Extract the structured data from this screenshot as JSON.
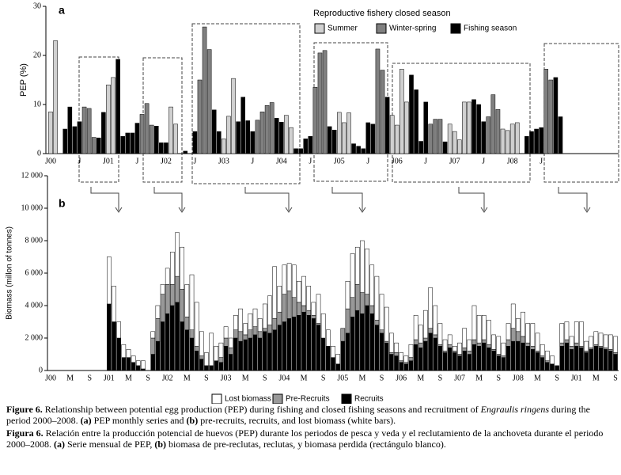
{
  "chart_data": [
    {
      "type": "bar",
      "panel": "a",
      "ylabel": "PEP (%)",
      "legend_title": "Reproductive fishery closed season",
      "ylim": [
        0,
        30
      ],
      "yticks": [
        0,
        10,
        20,
        30
      ],
      "categories": [
        "J00",
        null,
        null,
        null,
        null,
        null,
        "J",
        null,
        null,
        null,
        null,
        null,
        "J01",
        null,
        null,
        null,
        null,
        null,
        "J",
        null,
        null,
        null,
        null,
        null,
        "J02",
        null,
        null,
        null,
        null,
        null,
        "J",
        null,
        null,
        null,
        null,
        null,
        "J03",
        null,
        null,
        null,
        null,
        null,
        "J",
        null,
        null,
        null,
        null,
        null,
        "J04",
        null,
        null,
        null,
        null,
        null,
        "J",
        null,
        null,
        null,
        null,
        null,
        "J05",
        null,
        null,
        null,
        null,
        null,
        "J",
        null,
        null,
        null,
        null,
        null,
        "J06",
        null,
        null,
        null,
        null,
        null,
        "J",
        null,
        null,
        null,
        null,
        null,
        "J07",
        null,
        null,
        null,
        null,
        null,
        "J",
        null,
        null,
        null,
        null,
        null,
        "J08",
        null,
        null,
        null,
        null,
        null,
        "J",
        null,
        null,
        null,
        null
      ],
      "series": [
        {
          "name": "Summer",
          "color": "#d0d0d0",
          "values": [
            8.5,
            23,
            null,
            null,
            null,
            null,
            null,
            null,
            null,
            null,
            null,
            null,
            14,
            15.5,
            null,
            null,
            null,
            null,
            null,
            null,
            null,
            null,
            null,
            null,
            null,
            9.5,
            6,
            null,
            null,
            null,
            null,
            null,
            null,
            null,
            null,
            null,
            3,
            7.6,
            15.3,
            null,
            null,
            null,
            null,
            null,
            null,
            null,
            null,
            null,
            null,
            7.8,
            5.3,
            null,
            null,
            null,
            null,
            null,
            null,
            null,
            null,
            null,
            8.4,
            6.3,
            8.3,
            null,
            null,
            null,
            null,
            null,
            null,
            null,
            null,
            7.8,
            5.8,
            17.2,
            10.5,
            null,
            null,
            null,
            null,
            null,
            null,
            null,
            null,
            6,
            4.5,
            2.8,
            10.5,
            10.5,
            null,
            null,
            null,
            null,
            null,
            null,
            5,
            4.7,
            6,
            6.3,
            null,
            null,
            null,
            null,
            null,
            null,
            null,
            null,
            null
          ]
        },
        {
          "name": "Winter-spring",
          "color": "#808080",
          "values": [
            null,
            null,
            null,
            null,
            null,
            null,
            null,
            9.5,
            9.2,
            3.3,
            null,
            null,
            null,
            null,
            null,
            null,
            null,
            null,
            null,
            8,
            10.2,
            5.8,
            null,
            null,
            null,
            null,
            null,
            null,
            null,
            null,
            null,
            15,
            25.8,
            21.2,
            null,
            null,
            null,
            null,
            null,
            null,
            null,
            null,
            null,
            6.8,
            8.5,
            9.8,
            10.4,
            null,
            null,
            null,
            null,
            null,
            null,
            null,
            null,
            13.5,
            20.5,
            21,
            null,
            null,
            null,
            null,
            null,
            null,
            null,
            null,
            null,
            null,
            21.3,
            17,
            null,
            null,
            null,
            null,
            null,
            null,
            null,
            null,
            null,
            6,
            7,
            7,
            null,
            null,
            null,
            null,
            null,
            null,
            null,
            null,
            null,
            7.5,
            12,
            9,
            null,
            null,
            null,
            null,
            null,
            null,
            null,
            null,
            null,
            17.2,
            15,
            null,
            null
          ]
        },
        {
          "name": "Fishing season",
          "color": "#000000",
          "values": [
            null,
            null,
            null,
            5,
            9.5,
            5.5,
            6.5,
            null,
            null,
            null,
            3.2,
            8.4,
            null,
            null,
            19.2,
            3.5,
            4.2,
            4.2,
            6.2,
            null,
            null,
            null,
            5.6,
            2.2,
            2.2,
            null,
            null,
            null,
            0.5,
            null,
            4.5,
            null,
            null,
            null,
            8.9,
            4.5,
            null,
            null,
            null,
            6.5,
            11.5,
            6.7,
            4.5,
            null,
            null,
            null,
            null,
            7.2,
            6.4,
            null,
            null,
            1,
            1,
            3,
            3.5,
            null,
            null,
            null,
            5.5,
            4.8,
            null,
            null,
            null,
            2,
            1.5,
            1,
            6.3,
            6,
            null,
            null,
            11.5,
            null,
            null,
            null,
            null,
            16,
            13,
            2.5,
            10.5,
            null,
            null,
            null,
            2.4,
            null,
            null,
            null,
            null,
            null,
            11,
            10,
            6.5,
            null,
            null,
            null,
            null,
            null,
            null,
            null,
            null,
            3.5,
            4.5,
            5,
            5.3,
            null,
            null,
            15.5,
            7.5
          ]
        }
      ]
    },
    {
      "type": "bar",
      "stacked": true,
      "panel": "b",
      "ylabel": "Biomass (millon of tonnes)",
      "ylim": [
        0,
        12000
      ],
      "yticks": [
        0,
        {
          "value": 2000,
          "label": "2 000"
        },
        {
          "value": 4000,
          "label": "4 000"
        },
        {
          "value": 6000,
          "label": "6 000"
        },
        {
          "value": 8000,
          "label": "8 000"
        },
        {
          "value": 10000,
          "label": "10 000"
        },
        {
          "value": 12000,
          "label": "12 000"
        }
      ],
      "categories": [
        "J00",
        null,
        null,
        null,
        "M",
        null,
        null,
        null,
        "S",
        null,
        null,
        null,
        "J01",
        null,
        null,
        null,
        "M",
        null,
        null,
        null,
        "S",
        null,
        null,
        null,
        "J02",
        null,
        null,
        null,
        "M",
        null,
        null,
        null,
        "S",
        null,
        null,
        null,
        "J03",
        null,
        null,
        null,
        "M",
        null,
        null,
        null,
        "S",
        null,
        null,
        null,
        "J04",
        null,
        null,
        null,
        "M",
        null,
        null,
        null,
        "S",
        null,
        null,
        null,
        "J05",
        null,
        null,
        null,
        "M",
        null,
        null,
        null,
        "S",
        null,
        null,
        null,
        "J06",
        null,
        null,
        null,
        "M",
        null,
        null,
        null,
        "S",
        null,
        null,
        null,
        "J07",
        null,
        null,
        null,
        "M",
        null,
        null,
        null,
        "S",
        null,
        null,
        null,
        "J08",
        null,
        null,
        null,
        "M",
        null,
        null,
        null,
        "S",
        null,
        null,
        null,
        "J01",
        null,
        null,
        null,
        "M",
        null,
        null,
        null,
        "S"
      ],
      "series": [
        {
          "name": "Lost biomass",
          "color": "#ffffff",
          "values": [
            0,
            0,
            0,
            0,
            0,
            0,
            0,
            0,
            0,
            0,
            0,
            0,
            2900,
            2200,
            1000,
            800,
            500,
            400,
            300,
            500,
            0,
            400,
            800,
            600,
            1000,
            2000,
            2700,
            2600,
            2000,
            3400,
            2700,
            1500,
            800,
            2000,
            900,
            900,
            700,
            600,
            900,
            1400,
            700,
            1000,
            1100,
            800,
            1500,
            1800,
            3200,
            1600,
            1800,
            1700,
            2000,
            1300,
            1800,
            1500,
            800,
            1800,
            1500,
            1000,
            700,
            600,
            0,
            1700,
            2700,
            2300,
            3200,
            2800,
            2500,
            2700,
            2200,
            2100,
            1200,
            600,
            500,
            400,
            800,
            1500,
            1100,
            1700,
            2500,
            1800,
            1300,
            700,
            600,
            300,
            700,
            1200,
            700,
            2100,
            1700,
            1500,
            1500,
            900,
            1100,
            800,
            1000,
            1500,
            800,
            1500,
            1200,
            1400,
            1100,
            700,
            600,
            500,
            0,
            1200,
            1100,
            600,
            1300,
            1500,
            600,
            700,
            800,
            800,
            800,
            900,
            1000
          ]
        },
        {
          "name": "Pre-Recruits",
          "color": "#999999",
          "values": [
            0,
            0,
            0,
            0,
            0,
            0,
            0,
            0,
            0,
            0,
            0,
            0,
            0,
            0,
            0,
            0,
            0,
            0,
            0,
            0,
            0,
            1000,
            1400,
            1700,
            1800,
            1300,
            1600,
            2000,
            800,
            500,
            300,
            200,
            0,
            0,
            0,
            300,
            500,
            400,
            500,
            600,
            300,
            500,
            500,
            400,
            200,
            500,
            700,
            800,
            1700,
            1700,
            1200,
            800,
            400,
            300,
            200,
            100,
            0,
            0,
            0,
            0,
            800,
            1500,
            1200,
            1600,
            1300,
            700,
            500,
            300,
            200,
            100,
            100,
            200,
            100,
            100,
            200,
            300,
            300,
            200,
            300,
            200,
            100,
            100,
            200,
            100,
            100,
            200,
            200,
            300,
            200,
            200,
            200,
            100,
            100,
            100,
            400,
            800,
            600,
            400,
            200,
            200,
            100,
            100,
            100,
            0,
            0,
            200,
            200,
            200,
            200,
            100,
            100,
            100,
            100,
            100,
            100,
            100,
            100
          ]
        },
        {
          "name": "Recruits",
          "color": "#000000",
          "values": [
            0,
            0,
            0,
            0,
            0,
            0,
            0,
            0,
            0,
            0,
            0,
            0,
            4100,
            3000,
            2000,
            800,
            800,
            500,
            300,
            100,
            0,
            1000,
            1800,
            3000,
            3500,
            4000,
            4200,
            3000,
            2500,
            2000,
            1200,
            700,
            300,
            300,
            600,
            500,
            1500,
            1000,
            2000,
            1800,
            1900,
            2000,
            2200,
            2000,
            2400,
            2300,
            2500,
            2800,
            3000,
            3200,
            3300,
            3400,
            3600,
            3400,
            3200,
            2800,
            2000,
            1500,
            800,
            400,
            1800,
            2300,
            3300,
            3700,
            3500,
            4000,
            3500,
            2800,
            2300,
            1700,
            1000,
            900,
            500,
            400,
            600,
            1600,
            1400,
            1800,
            2300,
            2000,
            1500,
            1100,
            1400,
            1100,
            900,
            1200,
            1000,
            1600,
            1500,
            1700,
            1400,
            1200,
            900,
            800,
            1500,
            1800,
            1800,
            1700,
            1500,
            1300,
            1100,
            800,
            500,
            400,
            300,
            1500,
            1700,
            1300,
            1500,
            1400,
            1100,
            1300,
            1500,
            1400,
            1300,
            1200,
            1000
          ]
        }
      ]
    }
  ],
  "caption": {
    "en": {
      "label": "Figure 6.",
      "t1": " Relationship between potential egg production (PEP) during fishing and closed fishing seasons and recruitment of ",
      "species": "Engraulis ringens",
      "t2": " during the period 2000–2008. ",
      "a": "(a)",
      "t3": " PEP monthly series and ",
      "b": "(b)",
      "t4": " pre-recruits, recruits, and lost biomass (white bars)."
    },
    "es": {
      "label": "Figura 6.",
      "t1": " Relación entre la producción potencial de huevos (PEP) durante los periodos de pesca y veda y el reclutamiento de la anchoveta durante el periodo 2000–2008. ",
      "a": "(a)",
      "t2": " Serie mensual de PEP, ",
      "b": "(b)",
      "t3": " biomasa de pre-reclutas, reclutas, y biomasa perdida (rectángulo blanco)."
    }
  }
}
